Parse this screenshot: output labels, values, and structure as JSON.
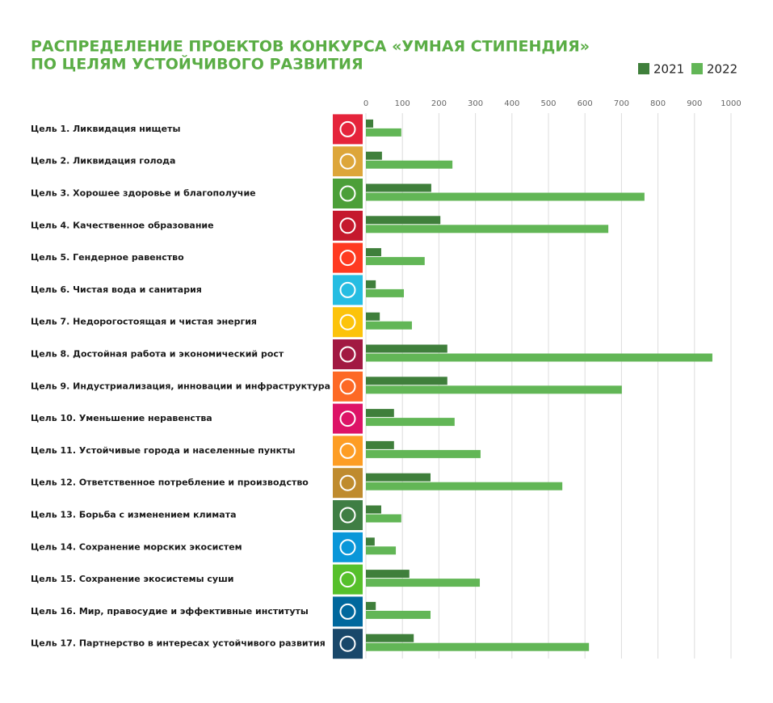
{
  "chart_data": {
    "type": "bar",
    "orientation": "horizontal",
    "title": [
      "РАСПРЕДЕЛЕНИЕ ПРОЕКТОВ КОНКУРСА «УМНАЯ СТИПЕНДИЯ»",
      "ПО ЦЕЛЯМ УСТОЙЧИВОГО РАЗВИТИЯ"
    ],
    "categories": [
      "Цель 1. Ликвидация нищеты",
      "Цель 2. Ликвидация голода",
      "Цель 3. Хорошее здоровье и благополучие",
      "Цель 4. Качественное образование",
      "Цель 5. Гендерное равенство",
      "Цель 6. Чистая вода и санитария",
      "Цель 7. Недорогостоящая и чистая энергия",
      "Цель 8. Достойная работа и экономический рост",
      "Цель 9. Индустриализация, инновации и инфраструктура",
      "Цель 10. Уменьшение неравенства",
      "Цель 11. Устойчивые города и населенные пункты",
      "Цель 12. Ответственное потребление и производство",
      "Цель 13. Борьба с изменением климата",
      "Цель 14. Сохранение морских экосистем",
      "Цель 15. Сохранение экосистемы суши",
      "Цель 16. Мир, правосудие и эффективные институты",
      "Цель 17. Партнерство в интересах устойчивого развития"
    ],
    "series": [
      {
        "name": "2021",
        "color": "#3f7f3b",
        "values": [
          20,
          44,
          179,
          204,
          42,
          27,
          38,
          223,
          223,
          77,
          77,
          177,
          42,
          24,
          119,
          27,
          131
        ]
      },
      {
        "name": "2022",
        "color": "#62b656",
        "values": [
          97,
          237,
          763,
          664,
          161,
          104,
          126,
          949,
          701,
          243,
          314,
          538,
          97,
          82,
          312,
          177,
          611
        ]
      }
    ],
    "xlim": [
      0,
      1000
    ],
    "xticks": [
      0,
      100,
      200,
      300,
      400,
      500,
      600,
      700,
      800,
      900,
      1000
    ],
    "grid": true,
    "legend": "top-right"
  }
}
